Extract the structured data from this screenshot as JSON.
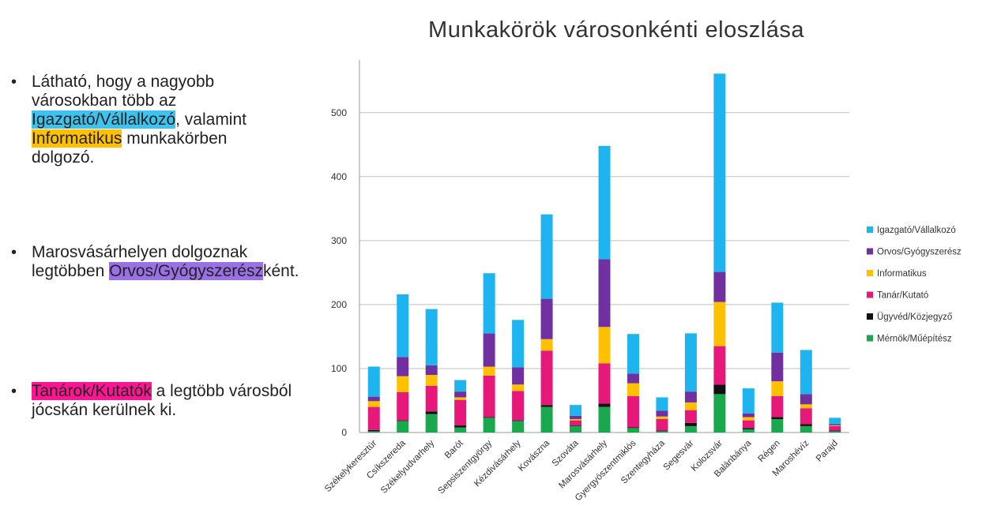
{
  "slide": {
    "bullets": [
      {
        "pre": "Látható, hogy a nagyobb városokban több az ",
        "hl1": "Igazgató/Vállalkozó",
        "mid": ", valamint ",
        "hl2": "Informatikus",
        "post": " munkakörben dolgozó."
      },
      {
        "pre": "Marosvásárhelyen dolgoznak legtöbben ",
        "hl1": "Orvos/Gyógyszerész",
        "post": "ként."
      },
      {
        "hl1": "Tanárok/Kutatók",
        "post": "  a legtöbb városból jócskán kerülnek ki."
      }
    ]
  },
  "colors": {
    "Igazgató/Vállalkozó": "#1eb4f0",
    "Orvos/Gyógyszerész": "#7030a0",
    "Informatikus": "#ffc000",
    "Tanár/Kutató": "#e6197a",
    "Ügyvéd/Közjegyző": "#111111",
    "Mérnök/Műépítész": "#1aa84f"
  },
  "chart_data": {
    "type": "bar",
    "stacked": true,
    "title": "Munkakörök városonkénti eloszlása",
    "categories": [
      "Székelykeresztúr",
      "Csíkszereda",
      "Székelyudvarhely",
      "Barót",
      "Sepsiszentgyörgy",
      "Kézdivásárhely",
      "Kovászna",
      "Szováta",
      "Marosvásárhely",
      "Gyergyószentmiklós",
      "Szentegyháza",
      "Segesvár",
      "Kolozsvár",
      "Balánbánya",
      "Régen",
      "Maroshévíz",
      "Parajd"
    ],
    "series": [
      {
        "name": "Mérnök/Műépítész",
        "values": [
          2,
          18,
          29,
          8,
          23,
          18,
          40,
          10,
          40,
          7,
          2,
          10,
          60,
          5,
          21,
          10,
          2
        ]
      },
      {
        "name": "Ügyvéd/Közjegyző",
        "values": [
          2,
          1,
          4,
          3,
          1,
          1,
          3,
          1,
          5,
          1,
          1,
          5,
          15,
          2,
          3,
          3,
          1
        ]
      },
      {
        "name": "Tanár/Kutató",
        "values": [
          36,
          44,
          40,
          40,
          65,
          46,
          85,
          8,
          63,
          49,
          18,
          20,
          60,
          12,
          33,
          25,
          7
        ]
      },
      {
        "name": "Informatikus",
        "values": [
          9,
          25,
          17,
          4,
          14,
          10,
          18,
          2,
          57,
          20,
          4,
          12,
          69,
          5,
          23,
          6,
          1
        ]
      },
      {
        "name": "Orvos/Gyógyszerész",
        "values": [
          7,
          30,
          15,
          9,
          52,
          27,
          63,
          5,
          106,
          15,
          9,
          17,
          47,
          6,
          45,
          16,
          2
        ]
      },
      {
        "name": "Igazgató/Vállalkozó",
        "values": [
          47,
          98,
          88,
          18,
          94,
          74,
          132,
          17,
          177,
          62,
          21,
          91,
          310,
          39,
          78,
          69,
          10
        ]
      }
    ],
    "legend_order": [
      "Igazgató/Vállalkozó",
      "Orvos/Gyógyszerész",
      "Informatikus",
      "Tanár/Kutató",
      "Ügyvéd/Közjegyző",
      "Mérnök/Műépítész"
    ],
    "yticks": [
      0,
      100,
      200,
      300,
      400,
      500
    ],
    "ylim": [
      0,
      570
    ],
    "grid": true,
    "legend_position": "right"
  }
}
